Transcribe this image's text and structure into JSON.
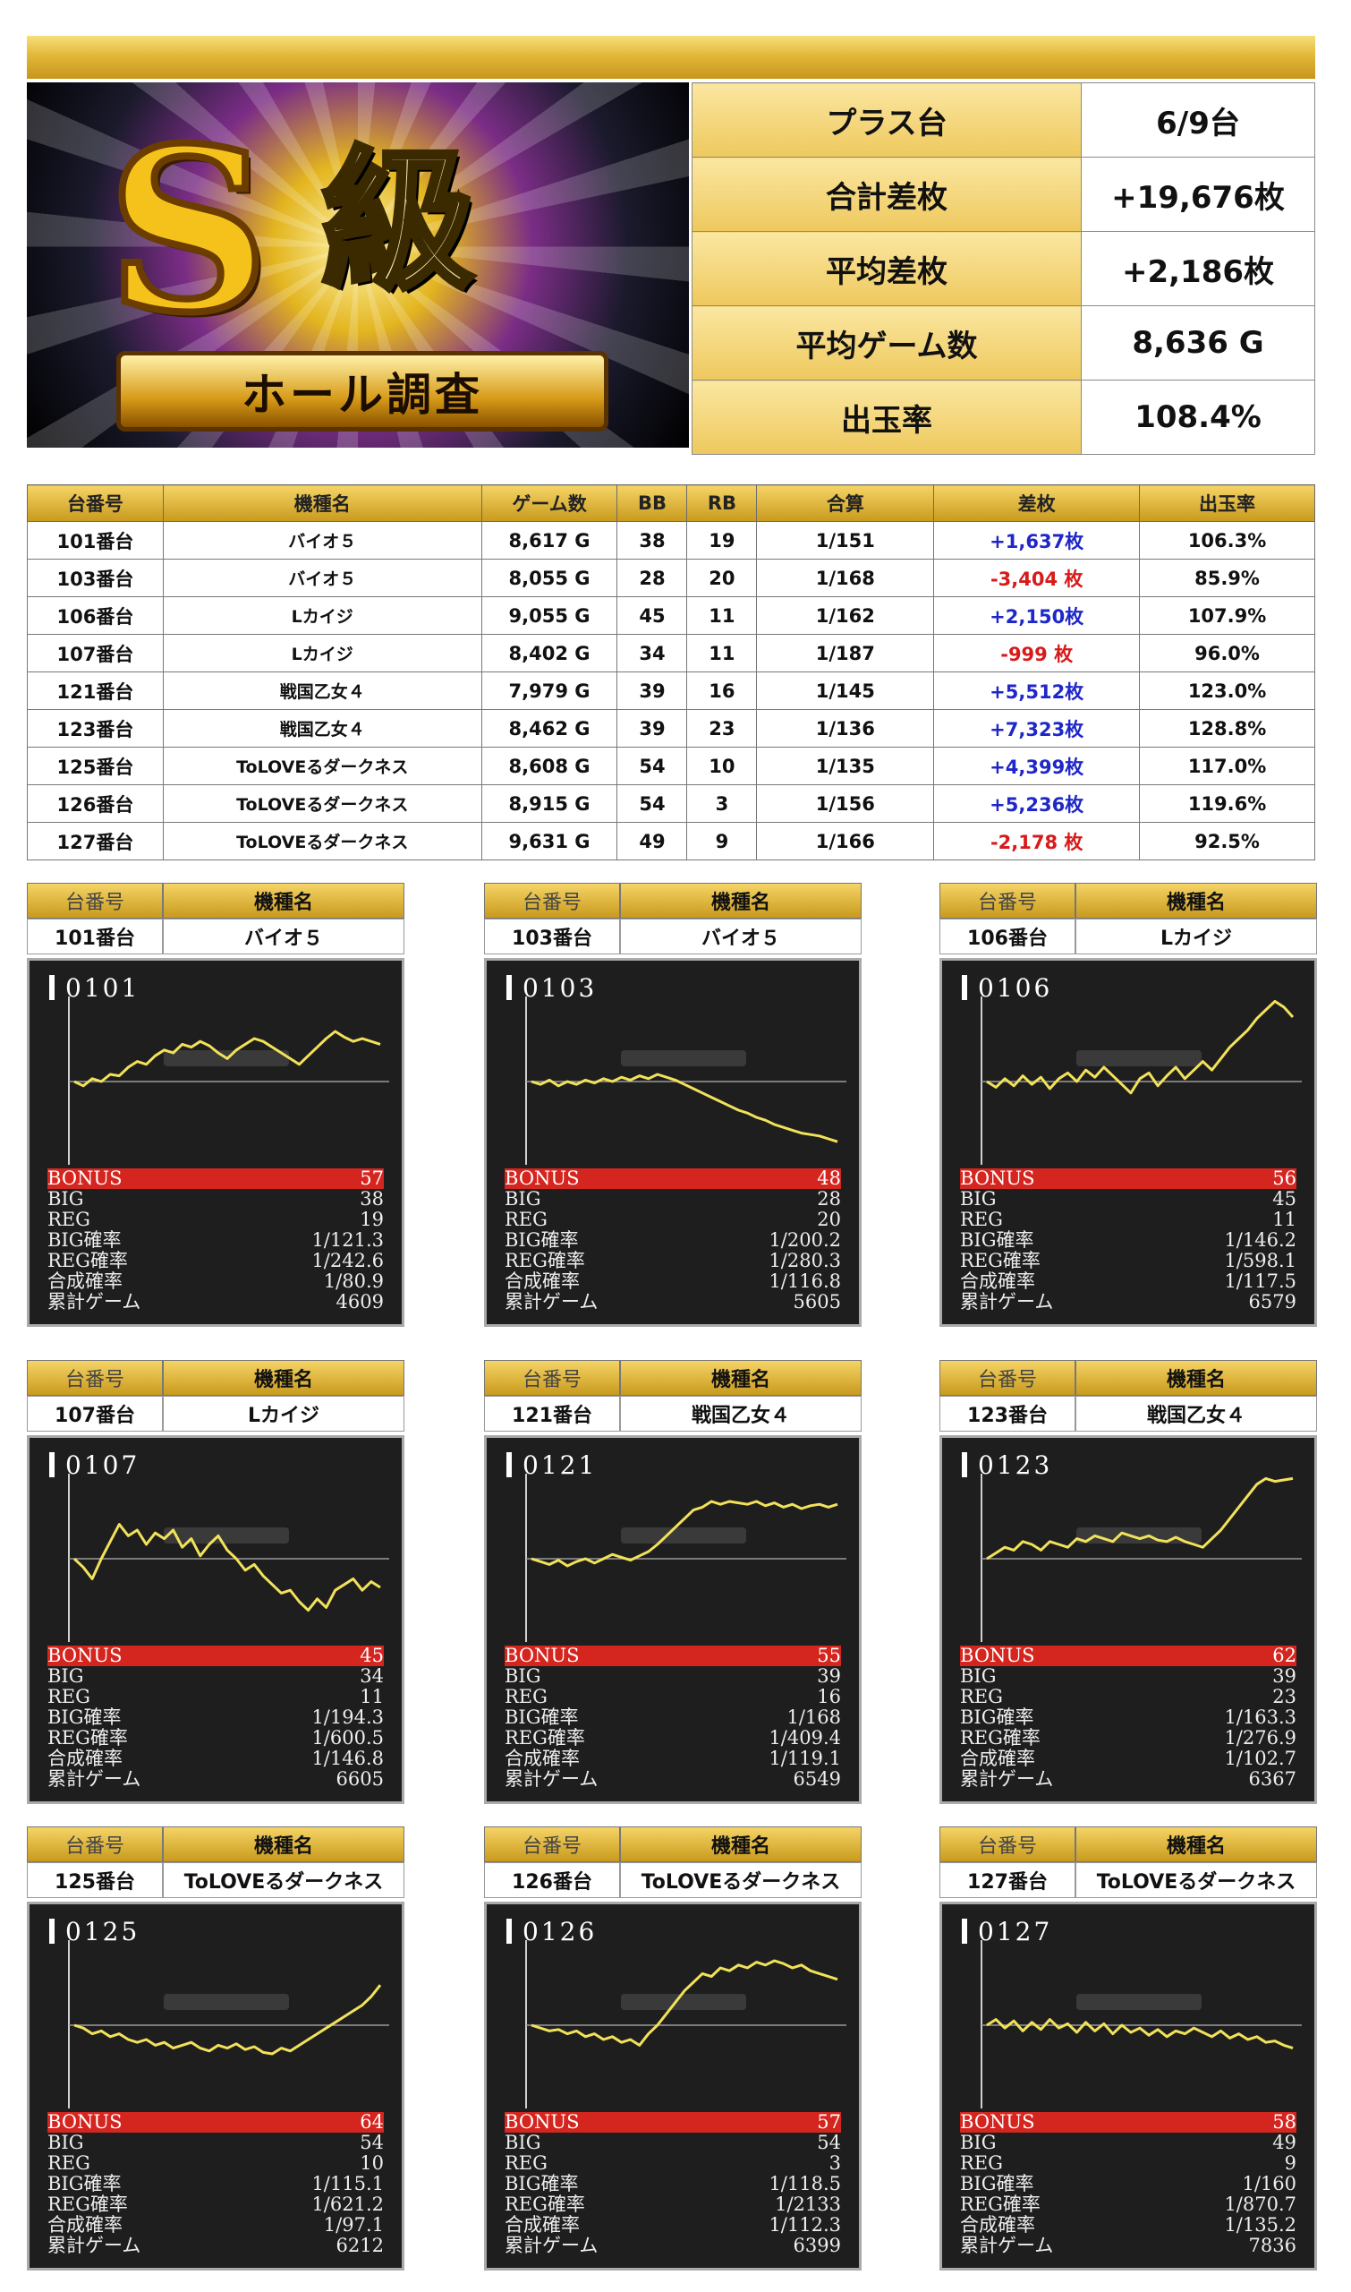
{
  "summary": [
    {
      "label": "プラス台",
      "value": "6/9台"
    },
    {
      "label": "合計差枚",
      "value": "+19,676枚"
    },
    {
      "label": "平均差枚",
      "value": "+2,186枚"
    },
    {
      "label": "平均ゲーム数",
      "value": "8,636 G"
    },
    {
      "label": "出玉率",
      "value": "108.4%"
    }
  ],
  "banner": {
    "title_s": "S",
    "title_kyu": "級",
    "ribbon": "ホール調査"
  },
  "table": {
    "headers": [
      "台番号",
      "機種名",
      "ゲーム数",
      "BB",
      "RB",
      "合算",
      "差枚",
      "出玉率"
    ],
    "rows": [
      {
        "no": "101番台",
        "name": "バイオ５",
        "games": "8,617 G",
        "bb": "38",
        "rb": "19",
        "combined": "1/151",
        "diff": "+1,637枚",
        "rate": "106.3%",
        "sign": "pos"
      },
      {
        "no": "103番台",
        "name": "バイオ５",
        "games": "8,055 G",
        "bb": "28",
        "rb": "20",
        "combined": "1/168",
        "diff": "-3,404 枚",
        "rate": "85.9%",
        "sign": "neg"
      },
      {
        "no": "106番台",
        "name": "Lカイジ",
        "games": "9,055 G",
        "bb": "45",
        "rb": "11",
        "combined": "1/162",
        "diff": "+2,150枚",
        "rate": "107.9%",
        "sign": "pos"
      },
      {
        "no": "107番台",
        "name": "Lカイジ",
        "games": "8,402 G",
        "bb": "34",
        "rb": "11",
        "combined": "1/187",
        "diff": "-999 枚",
        "rate": "96.0%",
        "sign": "neg"
      },
      {
        "no": "121番台",
        "name": "戦国乙女４",
        "games": "7,979 G",
        "bb": "39",
        "rb": "16",
        "combined": "1/145",
        "diff": "+5,512枚",
        "rate": "123.0%",
        "sign": "pos"
      },
      {
        "no": "123番台",
        "name": "戦国乙女４",
        "games": "8,462 G",
        "bb": "39",
        "rb": "23",
        "combined": "1/136",
        "diff": "+7,323枚",
        "rate": "128.8%",
        "sign": "pos"
      },
      {
        "no": "125番台",
        "name": "ToLOVEるダークネス",
        "games": "8,608 G",
        "bb": "54",
        "rb": "10",
        "combined": "1/135",
        "diff": "+4,399枚",
        "rate": "117.0%",
        "sign": "pos"
      },
      {
        "no": "126番台",
        "name": "ToLOVEるダークネス",
        "games": "8,915 G",
        "bb": "54",
        "rb": "3",
        "combined": "1/156",
        "diff": "+5,236枚",
        "rate": "119.6%",
        "sign": "pos"
      },
      {
        "no": "127番台",
        "name": "ToLOVEるダークネス",
        "games": "9,631 G",
        "bb": "49",
        "rb": "9",
        "combined": "1/166",
        "diff": "-2,178 枚",
        "rate": "92.5%",
        "sign": "neg"
      }
    ]
  },
  "card_headers": {
    "no": "台番号",
    "name": "機種名"
  },
  "stat_labels": {
    "bonus": "BONUS",
    "big": "BIG",
    "reg": "REG",
    "big_rate": "BIG確率",
    "reg_rate": "REG確率",
    "comb_rate": "合成確率",
    "total": "累計ゲーム"
  },
  "cards": [
    {
      "no": "101番台",
      "name": "バイオ５",
      "screen_no": "0101",
      "bonus": "57",
      "big": "38",
      "reg": "19",
      "big_rate": "1/121.3",
      "reg_rate": "1/242.6",
      "comb_rate": "1/80.9",
      "total": "4609",
      "graph": [
        0,
        -3,
        2,
        0,
        5,
        4,
        10,
        14,
        12,
        18,
        22,
        20,
        26,
        24,
        28,
        25,
        20,
        16,
        22,
        26,
        30,
        28,
        24,
        20,
        16,
        12,
        18,
        24,
        30,
        35,
        31,
        28,
        30,
        28,
        26
      ]
    },
    {
      "no": "103番台",
      "name": "バイオ５",
      "screen_no": "0103",
      "bonus": "48",
      "big": "28",
      "reg": "20",
      "big_rate": "1/200.2",
      "reg_rate": "1/280.3",
      "comb_rate": "1/116.8",
      "total": "5605",
      "graph": [
        0,
        -2,
        1,
        -3,
        0,
        -2,
        1,
        -1,
        2,
        0,
        3,
        1,
        4,
        2,
        5,
        3,
        1,
        -2,
        -5,
        -8,
        -11,
        -14,
        -17,
        -20,
        -22,
        -25,
        -27,
        -30,
        -32,
        -34,
        -36,
        -37,
        -38,
        -40,
        -42
      ]
    },
    {
      "no": "106番台",
      "name": "Lカイジ",
      "screen_no": "0106",
      "bonus": "56",
      "big": "45",
      "reg": "11",
      "big_rate": "1/146.2",
      "reg_rate": "1/598.1",
      "comb_rate": "1/117.5",
      "total": "6579",
      "graph": [
        0,
        -4,
        2,
        -3,
        4,
        -2,
        3,
        -5,
        2,
        6,
        0,
        8,
        3,
        10,
        4,
        -2,
        -8,
        2,
        6,
        -3,
        4,
        10,
        2,
        8,
        14,
        8,
        16,
        24,
        30,
        36,
        44,
        50,
        56,
        52,
        45
      ]
    },
    {
      "no": "107番台",
      "name": "Lカイジ",
      "screen_no": "0107",
      "bonus": "45",
      "big": "34",
      "reg": "11",
      "big_rate": "1/194.3",
      "reg_rate": "1/600.5",
      "comb_rate": "1/146.8",
      "total": "6605",
      "graph": [
        0,
        -6,
        -14,
        0,
        12,
        24,
        16,
        20,
        10,
        18,
        14,
        20,
        8,
        14,
        2,
        10,
        16,
        6,
        0,
        -8,
        -4,
        -12,
        -18,
        -24,
        -22,
        -30,
        -36,
        -28,
        -34,
        -22,
        -18,
        -14,
        -22,
        -16,
        -20
      ]
    },
    {
      "no": "121番台",
      "name": "戦国乙女４",
      "screen_no": "0121",
      "bonus": "55",
      "big": "39",
      "reg": "16",
      "big_rate": "1/168",
      "reg_rate": "1/409.4",
      "comb_rate": "1/119.1",
      "total": "6549",
      "graph": [
        0,
        -2,
        -4,
        -1,
        -5,
        -2,
        0,
        -3,
        0,
        3,
        1,
        -1,
        2,
        5,
        10,
        16,
        22,
        28,
        34,
        36,
        40,
        38,
        40,
        39,
        38,
        40,
        37,
        39,
        36,
        38,
        35,
        37,
        38,
        36,
        38
      ]
    },
    {
      "no": "123番台",
      "name": "戦国乙女４",
      "screen_no": "0123",
      "bonus": "62",
      "big": "39",
      "reg": "23",
      "big_rate": "1/163.3",
      "reg_rate": "1/276.9",
      "comb_rate": "1/102.7",
      "total": "6367",
      "graph": [
        0,
        4,
        8,
        6,
        12,
        10,
        6,
        12,
        10,
        8,
        14,
        12,
        16,
        14,
        12,
        18,
        16,
        14,
        16,
        13,
        12,
        15,
        12,
        10,
        8,
        14,
        20,
        28,
        36,
        44,
        52,
        56,
        54,
        55,
        56
      ]
    },
    {
      "no": "125番台",
      "name": "ToLOVEるダークネス",
      "screen_no": "0125",
      "bonus": "64",
      "big": "54",
      "reg": "10",
      "big_rate": "1/115.1",
      "reg_rate": "1/621.2",
      "comb_rate": "1/97.1",
      "total": "6212",
      "graph": [
        0,
        -2,
        -6,
        -4,
        -8,
        -6,
        -10,
        -12,
        -10,
        -14,
        -12,
        -16,
        -14,
        -12,
        -16,
        -18,
        -14,
        -16,
        -13,
        -17,
        -15,
        -19,
        -20,
        -16,
        -18,
        -14,
        -10,
        -6,
        -2,
        2,
        6,
        10,
        14,
        20,
        28
      ]
    },
    {
      "no": "126番台",
      "name": "ToLOVEるダークネス",
      "screen_no": "0126",
      "bonus": "57",
      "big": "54",
      "reg": "3",
      "big_rate": "1/118.5",
      "reg_rate": "1/2133",
      "comb_rate": "1/112.3",
      "total": "6399",
      "graph": [
        0,
        -2,
        -4,
        -3,
        -6,
        -4,
        -8,
        -6,
        -10,
        -8,
        -12,
        -10,
        -14,
        -6,
        0,
        8,
        16,
        24,
        30,
        36,
        34,
        40,
        38,
        42,
        40,
        44,
        42,
        45,
        43,
        40,
        42,
        38,
        36,
        34,
        32
      ]
    },
    {
      "no": "127番台",
      "name": "ToLOVEるダークネス",
      "screen_no": "0127",
      "bonus": "58",
      "big": "49",
      "reg": "9",
      "big_rate": "1/160",
      "reg_rate": "1/870.7",
      "comb_rate": "1/135.2",
      "total": "7836",
      "graph": [
        0,
        4,
        -2,
        3,
        -4,
        2,
        -3,
        4,
        -2,
        1,
        -5,
        2,
        -4,
        1,
        -6,
        0,
        -5,
        -2,
        -7,
        -3,
        -8,
        -4,
        -6,
        -2,
        -5,
        -8,
        -4,
        -9,
        -6,
        -10,
        -8,
        -12,
        -11,
        -14,
        -16
      ]
    }
  ],
  "colors": {
    "gold": "#e2b83a",
    "pos": "#1f27c8",
    "neg": "#d71a1a",
    "graph": "#f2e25a",
    "bonus_bar": "#d5251f"
  }
}
